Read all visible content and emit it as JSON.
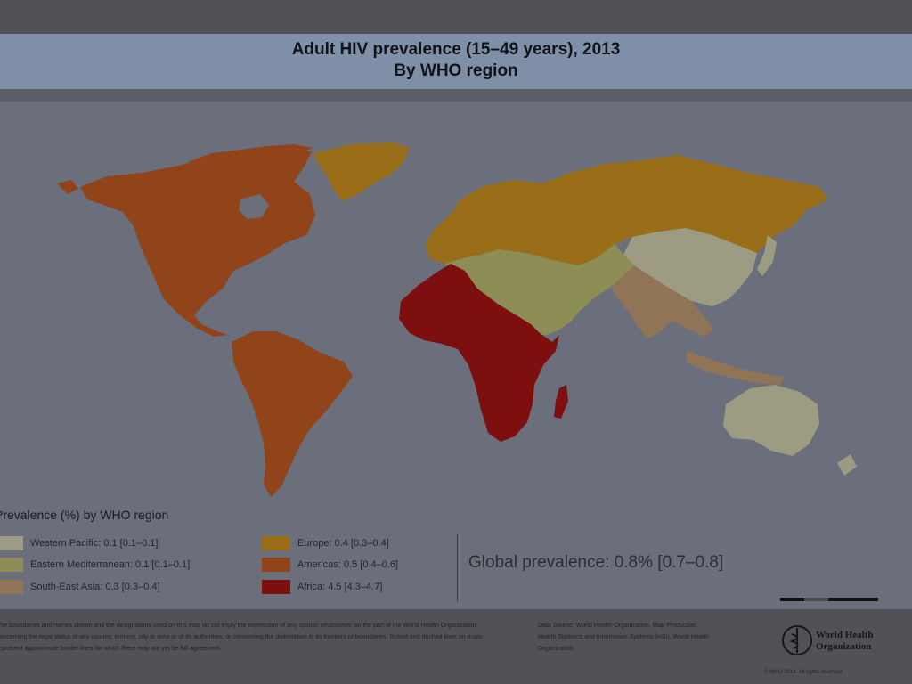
{
  "title": {
    "line1": "Adult HIV prevalence (15–49 years), 2013",
    "line2": "By WHO region"
  },
  "legend": {
    "title": "Prevalence (%) by WHO region",
    "items": [
      {
        "label": "Western Pacific: 0.1 [0.1–0.1]",
        "color": "#9d9c83"
      },
      {
        "label": "Eastern Mediterranean: 0.1 [0.1–0.1]",
        "color": "#8c8e55"
      },
      {
        "label": "South-East Asia: 0.3 [0.3–0.4]",
        "color": "#8f7556"
      },
      {
        "label": "Europe: 0.4 [0.3–0.4]",
        "color": "#9a6e18"
      },
      {
        "label": "Americas: 0.5 [0.4–0.6]",
        "color": "#91441a"
      },
      {
        "label": "Africa: 4.5 [4.3–4.7]",
        "color": "#7d0f0e"
      }
    ]
  },
  "global_prevalence": "Global prevalence: 0.8% [0.7–0.8]",
  "footer": {
    "disclaimer": "The boundaries and names shown and the designations used on this map do not imply the expression of any opinion whatsoever on the part of the World Health Organization concerning the legal status of any country, territory, city or area or of its authorities, or concerning the delimitation of its frontiers or boundaries. Dotted and dashed lines on maps represent approximate border lines for which there may not yet be full agreement.",
    "data_source": "Data Source: World Health Organization. Map Production: Health Statistics and Information Systems (HSI), World Health Organization",
    "copyright": "© WHO 2014. All rights reserved.",
    "logo_text": "World Health Organization"
  },
  "colors": {
    "ocean": "#6a6f7b",
    "title_band": "#7f8fa8",
    "no_data": "#6a6f7b"
  }
}
